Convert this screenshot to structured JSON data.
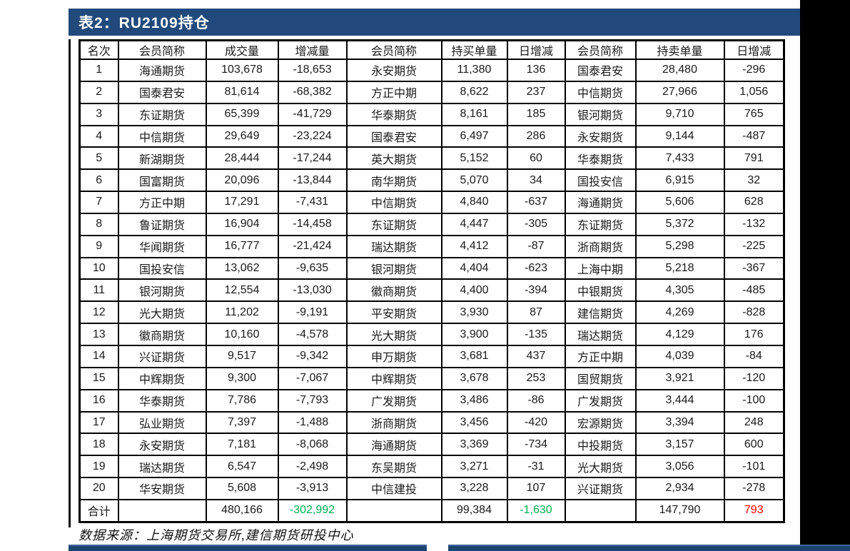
{
  "page": {
    "title": "表2：RU2109持仓",
    "source_note": "数据来源：上海期货交易所,建信期货研投中心"
  },
  "colors": {
    "accent_bar": "#21497B",
    "bottom_bar": "#1D4370",
    "bottom_bar_highlight": "#40659A",
    "negative_green": "#00B050",
    "positive_red": "#FF0000"
  },
  "table": {
    "headers": [
      "名次",
      "会员简称",
      "成交量",
      "增减量",
      "会员简称",
      "持买单量",
      "日增减",
      "会员简称",
      "持卖单量",
      "日增减"
    ],
    "rows": [
      [
        "1",
        "海通期货",
        "103,678",
        "-18,653",
        "永安期货",
        "11,380",
        "136",
        "国泰君安",
        "28,480",
        "-296"
      ],
      [
        "2",
        "国泰君安",
        "81,614",
        "-68,382",
        "方正中期",
        "8,622",
        "237",
        "中信期货",
        "27,966",
        "1,056"
      ],
      [
        "3",
        "东证期货",
        "65,399",
        "-41,729",
        "华泰期货",
        "8,161",
        "185",
        "银河期货",
        "9,710",
        "765"
      ],
      [
        "4",
        "中信期货",
        "29,649",
        "-23,224",
        "国泰君安",
        "6,497",
        "286",
        "永安期货",
        "9,144",
        "-487"
      ],
      [
        "5",
        "新湖期货",
        "28,444",
        "-17,244",
        "英大期货",
        "5,152",
        "60",
        "华泰期货",
        "7,433",
        "791"
      ],
      [
        "6",
        "国富期货",
        "20,096",
        "-13,844",
        "南华期货",
        "5,070",
        "34",
        "国投安信",
        "6,915",
        "32"
      ],
      [
        "7",
        "方正中期",
        "17,291",
        "-7,431",
        "中信期货",
        "4,840",
        "-637",
        "海通期货",
        "5,606",
        "628"
      ],
      [
        "8",
        "鲁证期货",
        "16,904",
        "-14,458",
        "东证期货",
        "4,447",
        "-305",
        "东证期货",
        "5,372",
        "-132"
      ],
      [
        "9",
        "华闻期货",
        "16,777",
        "-21,424",
        "瑞达期货",
        "4,412",
        "-87",
        "浙商期货",
        "5,298",
        "-225"
      ],
      [
        "10",
        "国投安信",
        "13,062",
        "-9,635",
        "银河期货",
        "4,404",
        "-623",
        "上海中期",
        "5,218",
        "-367"
      ],
      [
        "11",
        "银河期货",
        "12,554",
        "-13,030",
        "徽商期货",
        "4,400",
        "-394",
        "中银期货",
        "4,305",
        "-485"
      ],
      [
        "12",
        "光大期货",
        "11,202",
        "-9,191",
        "平安期货",
        "3,930",
        "87",
        "建信期货",
        "4,269",
        "-828"
      ],
      [
        "13",
        "徽商期货",
        "10,160",
        "-4,578",
        "光大期货",
        "3,900",
        "-135",
        "瑞达期货",
        "4,129",
        "176"
      ],
      [
        "14",
        "兴证期货",
        "9,517",
        "-9,342",
        "申万期货",
        "3,681",
        "437",
        "方正中期",
        "4,039",
        "-84"
      ],
      [
        "15",
        "中辉期货",
        "9,300",
        "-7,067",
        "中辉期货",
        "3,678",
        "253",
        "国贸期货",
        "3,921",
        "-120"
      ],
      [
        "16",
        "华泰期货",
        "7,786",
        "-7,793",
        "广发期货",
        "3,486",
        "-86",
        "广发期货",
        "3,444",
        "-100"
      ],
      [
        "17",
        "弘业期货",
        "7,397",
        "-1,488",
        "浙商期货",
        "3,456",
        "-420",
        "宏源期货",
        "3,394",
        "248"
      ],
      [
        "18",
        "永安期货",
        "7,181",
        "-8,068",
        "海通期货",
        "3,369",
        "-734",
        "中投期货",
        "3,157",
        "600"
      ],
      [
        "19",
        "瑞达期货",
        "6,547",
        "-2,498",
        "东吴期货",
        "3,271",
        "-31",
        "光大期货",
        "3,056",
        "-101"
      ],
      [
        "20",
        "华安期货",
        "5,608",
        "-3,913",
        "中信建投",
        "3,228",
        "107",
        "兴证期货",
        "2,934",
        "-278"
      ]
    ],
    "total_row": [
      {
        "text": "合计"
      },
      {
        "text": ""
      },
      {
        "text": "480,166"
      },
      {
        "text": "-302,992",
        "color": "green"
      },
      {
        "text": ""
      },
      {
        "text": "99,384"
      },
      {
        "text": "-1,630",
        "color": "green"
      },
      {
        "text": ""
      },
      {
        "text": "147,790"
      },
      {
        "text": "793",
        "color": "red"
      }
    ]
  }
}
